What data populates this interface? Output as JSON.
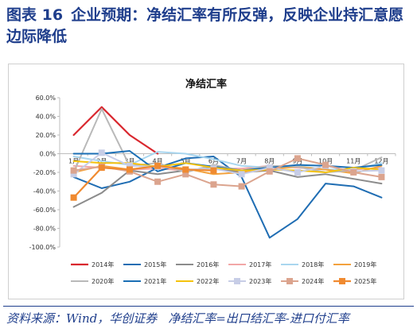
{
  "header": {
    "figure_number": "图表 16",
    "title": "企业预期：净结汇率有所反弹，反映企业持汇意愿边际降低"
  },
  "footer": {
    "source": "资料来源：Wind，华创证券",
    "formula": "净结汇率=出口结汇率-进口付汇率"
  },
  "chart_data": {
    "type": "line",
    "title": "净结汇率",
    "categories": [
      "1月",
      "2月",
      "3月",
      "4月",
      "5月",
      "6月",
      "7月",
      "8月",
      "9月",
      "10月",
      "11月",
      "12月"
    ],
    "y_ticks": [
      "60.0%",
      "40.0%",
      "20.0%",
      "0.0%",
      "-20.0%",
      "-40.0%",
      "-60.0%",
      "-80.0%",
      "-100.0%"
    ],
    "ylim": [
      -100,
      60
    ],
    "y_unit": "%",
    "legend_position": "bottom",
    "grid": false,
    "series": [
      {
        "name": "2014年",
        "color": "#d9272e",
        "marker": "none",
        "width": 2.2,
        "values": [
          20,
          50,
          20,
          0,
          null,
          null,
          null,
          null,
          null,
          null,
          null,
          null
        ]
      },
      {
        "name": "2015年",
        "color": "#1f6db3",
        "marker": "none",
        "width": 2,
        "values": [
          -25,
          -37,
          -30,
          -15,
          -5,
          -3,
          -25,
          -90,
          -70,
          -32,
          -35,
          -47
        ]
      },
      {
        "name": "2016年",
        "color": "#8c8c8c",
        "marker": "none",
        "width": 2,
        "values": [
          -57,
          -42,
          -18,
          -22,
          -18,
          -15,
          -20,
          -18,
          -25,
          -22,
          -27,
          -32
        ]
      },
      {
        "name": "2017年",
        "color": "#f2a7a7",
        "marker": "none",
        "width": 2,
        "values": [
          -13,
          -15,
          -17,
          -16,
          -18,
          -16,
          -16,
          -13,
          -15,
          -17,
          -17,
          -15
        ]
      },
      {
        "name": "2018年",
        "color": "#a9d6ef",
        "marker": "none",
        "width": 2,
        "values": [
          -3,
          -8,
          -12,
          2,
          0,
          -6,
          -13,
          -15,
          -13,
          -17,
          -17,
          -10
        ]
      },
      {
        "name": "2019年",
        "color": "#f3a23d",
        "marker": "none",
        "width": 2,
        "values": [
          -20,
          -13,
          -17,
          -13,
          -16,
          -22,
          -20,
          -17,
          -14,
          -17,
          -21,
          -13
        ]
      },
      {
        "name": "2020年",
        "color": "#b9b9b9",
        "marker": "none",
        "width": 2,
        "values": [
          -20,
          48,
          -13,
          -10,
          -20,
          -12,
          -18,
          -13,
          -14,
          -20,
          -18,
          -4
        ]
      },
      {
        "name": "2021年",
        "color": "#1b6fb5",
        "marker": "none",
        "width": 2,
        "values": [
          0,
          0,
          3,
          -19,
          -10,
          -14,
          -18,
          -15,
          -12,
          -13,
          -15,
          -12
        ]
      },
      {
        "name": "2022年",
        "color": "#f4c20d",
        "marker": "none",
        "width": 2,
        "values": [
          -8,
          -10,
          -10,
          -14,
          -10,
          -15,
          -18,
          -17,
          -18,
          -20,
          -15,
          -17
        ]
      },
      {
        "name": "2023年",
        "color": "#c7cde6",
        "marker": "square",
        "width": 2,
        "values": [
          -22,
          1,
          -13,
          -14,
          -17,
          -16,
          -22,
          -15,
          -20,
          -13,
          -19,
          -18
        ]
      },
      {
        "name": "2024年",
        "color": "#dba48e",
        "marker": "square",
        "width": 2,
        "values": [
          -18,
          -14,
          -19,
          -30,
          -22,
          -33,
          -35,
          -19,
          -5,
          -12,
          -20,
          -25
        ]
      },
      {
        "name": "2025年",
        "color": "#f08a30",
        "marker": "square",
        "width": 2.2,
        "values": [
          -47,
          -15,
          -17,
          -13,
          -17,
          -18,
          null,
          null,
          null,
          null,
          null,
          null
        ]
      }
    ]
  }
}
